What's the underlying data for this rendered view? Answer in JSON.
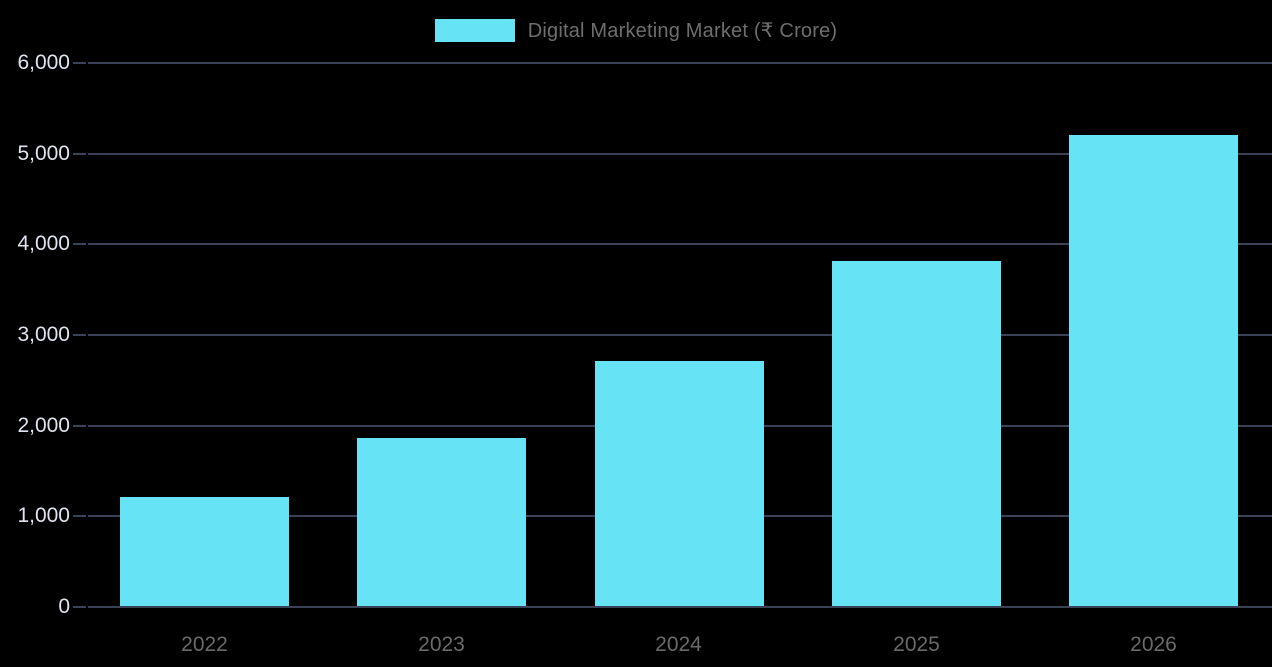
{
  "colors": {
    "background": "#000000",
    "bar": "#66e3f5",
    "gridline": "#3a4258",
    "y_tick_label": "#dfe3ee",
    "x_tick_label": "#6a6a6a",
    "legend_text": "#6e6e6e"
  },
  "chart_data": {
    "type": "bar",
    "title": "Digital Marketing Market (₹ Crore)",
    "categories": [
      "2022",
      "2023",
      "2024",
      "2025",
      "2026"
    ],
    "values": [
      1200,
      1850,
      2700,
      3800,
      5200
    ],
    "series": [
      {
        "name": "Digital Marketing Market (₹ Crore)",
        "values": [
          1200,
          1850,
          2700,
          3800,
          5200
        ]
      }
    ],
    "xlabel": "",
    "ylabel": "",
    "ylim": [
      0,
      6000
    ],
    "ytick_step": 1000,
    "yticks": [
      "0",
      "1,000",
      "2,000",
      "3,000",
      "4,000",
      "5,000",
      "6,000"
    ],
    "grid": true,
    "legend_position": "top"
  }
}
